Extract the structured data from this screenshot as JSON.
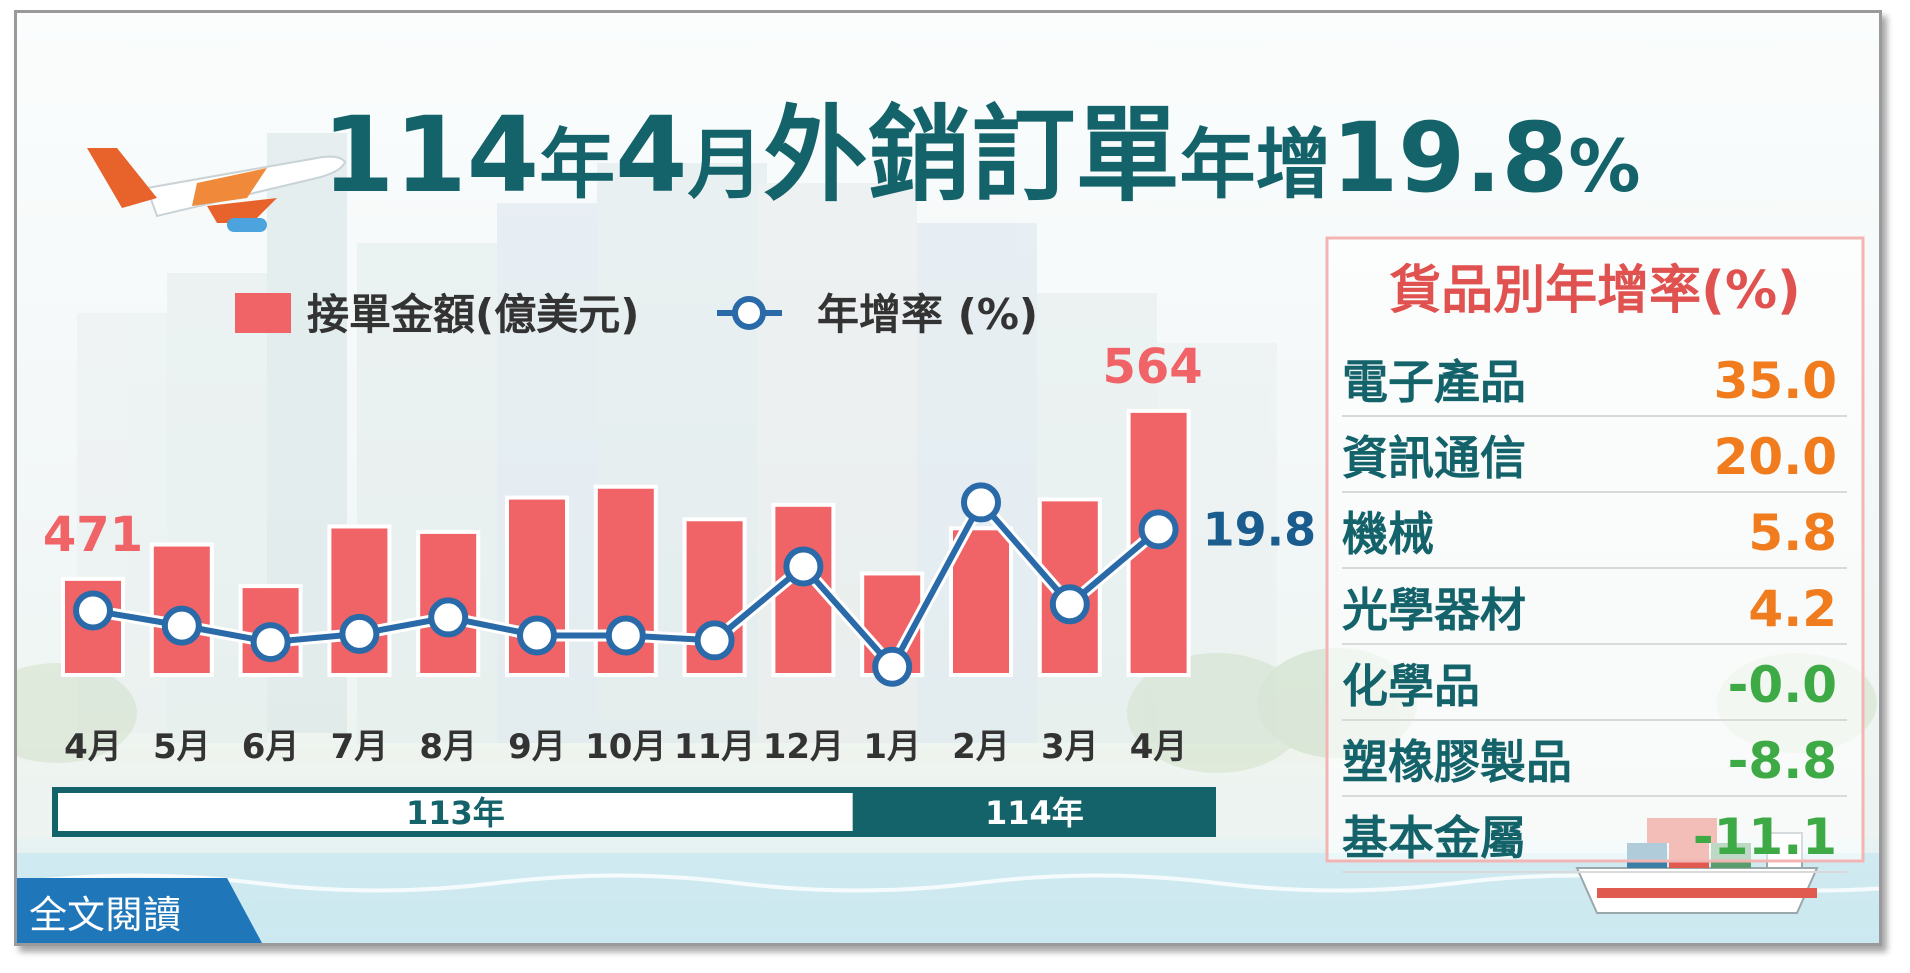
{
  "title": {
    "part1": "114",
    "part2": "年",
    "part3": "4",
    "part4": "月",
    "part5": "外銷訂單",
    "part6": "年增",
    "part7": "19.8",
    "part8": "%"
  },
  "legend": {
    "bar_label": "接單金額(億美元)",
    "line_label": "年增率 (%)"
  },
  "chart_data": {
    "type": "bar",
    "categories": [
      "4月",
      "5月",
      "6月",
      "7月",
      "8月",
      "9月",
      "10月",
      "11月",
      "12月",
      "1月",
      "2月",
      "3月",
      "4月"
    ],
    "series": [
      {
        "name": "接單金額(億美元)",
        "type": "bar",
        "values": [
          471,
          490,
          467,
          500,
          497,
          516,
          522,
          504,
          512,
          474,
          499,
          515,
          564
        ]
      },
      {
        "name": "年增率 (%)",
        "type": "line",
        "values": [
          -4.9,
          -9.5,
          -14.5,
          -12.0,
          -7.0,
          -12.5,
          -12.5,
          -14.0,
          8.5,
          -22.0,
          28.0,
          -3.0,
          19.8
        ]
      }
    ],
    "labeled_points": {
      "first_bar": "471",
      "last_bar": "564",
      "last_growth": "19.8"
    },
    "year_groups": [
      {
        "label": "113年",
        "span": 9
      },
      {
        "label": "114年",
        "span": 4
      }
    ]
  },
  "category_table": {
    "title": "貨品別年增率(%)",
    "rows": [
      {
        "name": "電子產品",
        "value": "35.0",
        "color": "#f07c1e"
      },
      {
        "name": "資訊通信",
        "value": "20.0",
        "color": "#f07c1e"
      },
      {
        "name": "機械",
        "value": "5.8",
        "color": "#f07c1e"
      },
      {
        "name": "光學器材",
        "value": "4.2",
        "color": "#f07c1e"
      },
      {
        "name": "化學品",
        "value": "-0.0",
        "color": "#3eaa46"
      },
      {
        "name": "塑橡膠製品",
        "value": "-8.8",
        "color": "#3eaa46"
      },
      {
        "name": "基本金屬",
        "value": "-11.1",
        "color": "#3eaa46"
      }
    ]
  },
  "read_more": "全文閱讀",
  "colors": {
    "bar": "#f06468",
    "line": "#2a6aa8",
    "title": "#14636a",
    "year_dark": "#14636a",
    "table_title": "#e0524f"
  }
}
